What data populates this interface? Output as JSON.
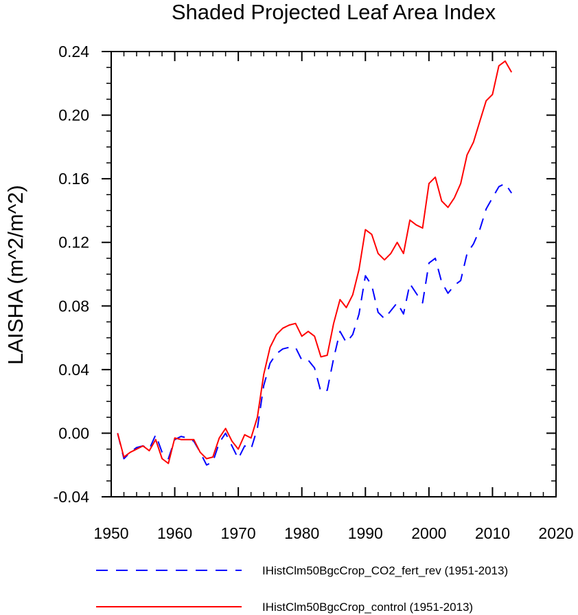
{
  "chart_data": {
    "type": "line",
    "title": "Shaded Projected Leaf Area Index",
    "xlabel": "",
    "ylabel": "LAISHA  (m^2/m^2)",
    "xlim": [
      1950,
      2020
    ],
    "ylim": [
      -0.04,
      0.24
    ],
    "xticks": [
      1950,
      1960,
      1970,
      1980,
      1990,
      2000,
      2010,
      2020
    ],
    "xtick_labels": [
      "1950",
      "1960",
      "1970",
      "1980",
      "1990",
      "2000",
      "2010",
      "2020"
    ],
    "yticks": [
      -0.04,
      0.0,
      0.04,
      0.08,
      0.12,
      0.16,
      0.2,
      0.24
    ],
    "ytick_labels": [
      "-0.04",
      "0.00",
      "0.04",
      "0.08",
      "0.12",
      "0.16",
      "0.20",
      "0.24"
    ],
    "grid": false,
    "legend_position": "bottom",
    "x": [
      1951,
      1952,
      1953,
      1954,
      1955,
      1956,
      1957,
      1958,
      1959,
      1960,
      1961,
      1962,
      1963,
      1964,
      1965,
      1966,
      1967,
      1968,
      1969,
      1970,
      1971,
      1972,
      1973,
      1974,
      1975,
      1976,
      1977,
      1978,
      1979,
      1980,
      1981,
      1982,
      1983,
      1984,
      1985,
      1986,
      1987,
      1988,
      1989,
      1990,
      1991,
      1992,
      1993,
      1994,
      1995,
      1996,
      1997,
      1998,
      1999,
      2000,
      2001,
      2002,
      2003,
      2004,
      2005,
      2006,
      2007,
      2008,
      2009,
      2010,
      2011,
      2012,
      2013
    ],
    "series": [
      {
        "name": "IHistClm50BgcCrop_CO2_fert_rev (1951-2013)",
        "color": "#0000ff",
        "style": "dashed",
        "values": [
          0.0,
          -0.016,
          -0.012,
          -0.009,
          -0.008,
          -0.01,
          -0.001,
          -0.012,
          -0.016,
          -0.004,
          -0.002,
          -0.003,
          -0.005,
          -0.012,
          -0.02,
          -0.018,
          -0.006,
          0.0,
          -0.008,
          -0.016,
          -0.008,
          -0.01,
          0.003,
          0.03,
          0.044,
          0.05,
          0.053,
          0.054,
          0.054,
          0.046,
          0.046,
          0.041,
          0.026,
          0.027,
          0.047,
          0.064,
          0.057,
          0.062,
          0.075,
          0.099,
          0.093,
          0.076,
          0.072,
          0.077,
          0.082,
          0.075,
          0.094,
          0.088,
          0.082,
          0.107,
          0.11,
          0.095,
          0.088,
          0.093,
          0.096,
          0.113,
          0.119,
          0.128,
          0.141,
          0.148,
          0.155,
          0.157,
          0.151
        ]
      },
      {
        "name": "IHistClm50BgcCrop_control (1951-2013)",
        "color": "#ff0000",
        "style": "solid",
        "values": [
          0.0,
          -0.015,
          -0.012,
          -0.01,
          -0.008,
          -0.011,
          -0.004,
          -0.016,
          -0.019,
          -0.003,
          -0.004,
          -0.004,
          -0.004,
          -0.012,
          -0.016,
          -0.015,
          -0.003,
          0.003,
          -0.005,
          -0.01,
          -0.001,
          -0.003,
          0.01,
          0.037,
          0.054,
          0.062,
          0.066,
          0.068,
          0.069,
          0.061,
          0.064,
          0.061,
          0.048,
          0.049,
          0.069,
          0.084,
          0.079,
          0.087,
          0.103,
          0.128,
          0.125,
          0.113,
          0.109,
          0.113,
          0.12,
          0.113,
          0.134,
          0.131,
          0.129,
          0.157,
          0.161,
          0.146,
          0.142,
          0.148,
          0.157,
          0.175,
          0.183,
          0.196,
          0.209,
          0.213,
          0.231,
          0.234,
          0.227
        ]
      }
    ]
  }
}
